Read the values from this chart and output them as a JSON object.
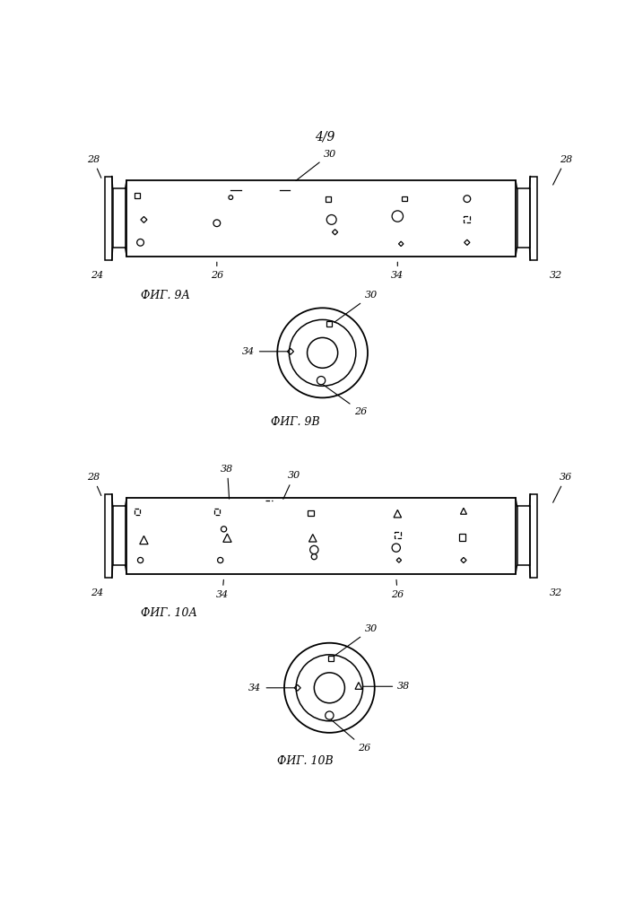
{
  "page_label": "4/9",
  "bg": "#ffffff",
  "lc": "#000000",
  "fig9a_label": "ФИГ. 9А",
  "fig9b_label": "ФИГ. 9В",
  "fig10a_label": "ФИГ. 10А",
  "fig10b_label": "ФИГ. 10В"
}
